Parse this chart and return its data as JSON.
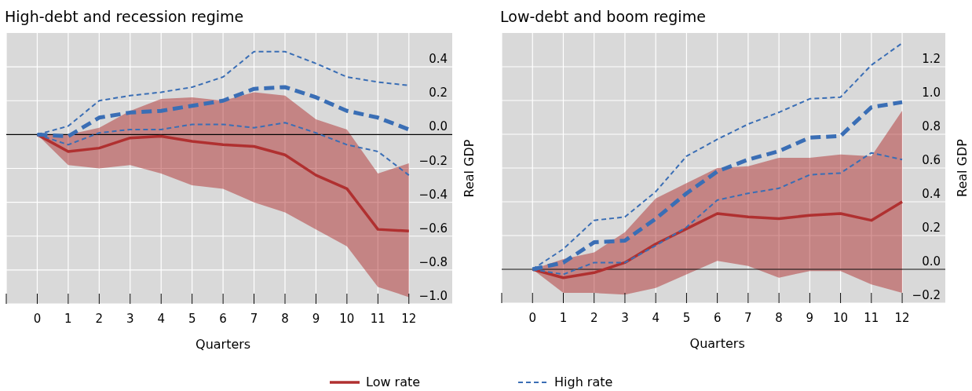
{
  "chart_data": [
    {
      "type": "line",
      "title": "High-debt and recession regime",
      "xlabel": "Quarters",
      "ylabel": "Real GDP",
      "x": [
        0,
        1,
        2,
        3,
        4,
        5,
        6,
        7,
        8,
        9,
        10,
        11,
        12
      ],
      "xlim": [
        -1,
        13.4
      ],
      "xticks": [
        {
          "value": -1,
          "label": null
        },
        0,
        1,
        2,
        3,
        4,
        5,
        6,
        7,
        8,
        9,
        10,
        11,
        12
      ],
      "ylim": [
        -1.0,
        0.6
      ],
      "yticks": [
        {
          "value": -1,
          "label": "−1.0"
        },
        {
          "value": -0.8,
          "label": "−0.8"
        },
        {
          "value": -0.6,
          "label": "−0.6"
        },
        {
          "value": -0.4,
          "label": "−0.4"
        },
        {
          "value": -0.2,
          "label": "−0.2"
        },
        {
          "value": 0,
          "label": "0.0"
        },
        0.2,
        0.4
      ],
      "ref_lines": [
        {
          "axis": "y",
          "value": 0,
          "color": "#000000"
        }
      ],
      "grid": true,
      "legend": "bottom",
      "series": [
        {
          "name": "Low rate",
          "color": "#b03030",
          "line_style": "solid",
          "values": [
            0,
            -0.1,
            -0.08,
            -0.02,
            -0.01,
            -0.04,
            -0.06,
            -0.07,
            -0.12,
            -0.24,
            -0.32,
            -0.56,
            -0.57
          ],
          "lower": [
            0,
            -0.18,
            -0.2,
            -0.18,
            -0.23,
            -0.3,
            -0.32,
            -0.4,
            -0.46,
            -0.56,
            -0.66,
            -0.9,
            -0.96
          ],
          "upper": [
            0,
            0,
            0.04,
            0.14,
            0.21,
            0.22,
            0.2,
            0.25,
            0.23,
            0.09,
            0.03,
            -0.23,
            -0.17
          ]
        },
        {
          "name": "High rate",
          "color": "#3a6eb5",
          "line_style": "dashed",
          "values": [
            0,
            -0.01,
            0.1,
            0.13,
            0.14,
            0.17,
            0.2,
            0.27,
            0.28,
            0.22,
            0.14,
            0.1,
            0.03
          ]
        },
        {
          "color": "#3a6eb5",
          "line_style": "dashed",
          "values": [
            0,
            0.05,
            0.2,
            0.23,
            0.25,
            0.28,
            0.34,
            0.49,
            0.49,
            0.42,
            0.34,
            0.31,
            0.29
          ]
        },
        {
          "color": "#3a6eb5",
          "line_style": "dashed",
          "values": [
            0,
            -0.06,
            0.01,
            0.03,
            0.03,
            0.06,
            0.06,
            0.04,
            0.07,
            0.01,
            -0.06,
            -0.1,
            -0.24
          ]
        }
      ]
    },
    {
      "type": "line",
      "title": "Low-debt and boom regime",
      "xlabel": "Quarters",
      "ylabel": "Real GDP",
      "x": [
        0,
        1,
        2,
        3,
        4,
        5,
        6,
        7,
        8,
        9,
        10,
        11,
        12
      ],
      "xlim": [
        -1,
        13.4
      ],
      "xticks": [
        {
          "value": -1,
          "label": null
        },
        0,
        1,
        2,
        3,
        4,
        5,
        6,
        7,
        8,
        9,
        10,
        11,
        12
      ],
      "ylim": [
        -0.2,
        1.4
      ],
      "yticks": [
        {
          "value": -0.2,
          "label": "−0.2"
        },
        {
          "value": 0,
          "label": "0.0"
        },
        0.2,
        0.4,
        0.6,
        0.8,
        {
          "value": 1,
          "label": "1.0"
        },
        1.2
      ],
      "ref_lines": [
        {
          "axis": "y",
          "value": 0,
          "color": "#000000"
        }
      ],
      "grid": true,
      "series": [
        {
          "color": "#b03030",
          "line_style": "solid",
          "values": [
            0,
            -0.05,
            -0.02,
            0.04,
            0.15,
            0.24,
            0.33,
            0.31,
            0.3,
            0.32,
            0.33,
            0.29,
            0.4
          ],
          "lower": [
            0,
            -0.14,
            -0.14,
            -0.15,
            -0.11,
            -0.03,
            0.05,
            0.02,
            -0.05,
            -0.01,
            -0.01,
            -0.09,
            -0.14
          ],
          "upper": [
            0,
            0.06,
            0.1,
            0.22,
            0.42,
            0.51,
            0.6,
            0.61,
            0.66,
            0.66,
            0.68,
            0.67,
            0.94
          ]
        },
        {
          "color": "#3a6eb5",
          "line_style": "dashed",
          "values": [
            0,
            0.04,
            0.16,
            0.17,
            0.3,
            0.45,
            0.58,
            0.65,
            0.7,
            0.78,
            0.79,
            0.96,
            0.99
          ]
        },
        {
          "color": "#3a6eb5",
          "line_style": "dashed",
          "values": [
            0,
            0.12,
            0.29,
            0.31,
            0.46,
            0.67,
            0.77,
            0.86,
            0.93,
            1.01,
            1.02,
            1.21,
            1.34
          ]
        },
        {
          "color": "#3a6eb5",
          "line_style": "dashed",
          "values": [
            0,
            -0.03,
            0.04,
            0.04,
            0.14,
            0.25,
            0.41,
            0.45,
            0.48,
            0.56,
            0.57,
            0.69,
            0.65
          ]
        }
      ]
    }
  ]
}
